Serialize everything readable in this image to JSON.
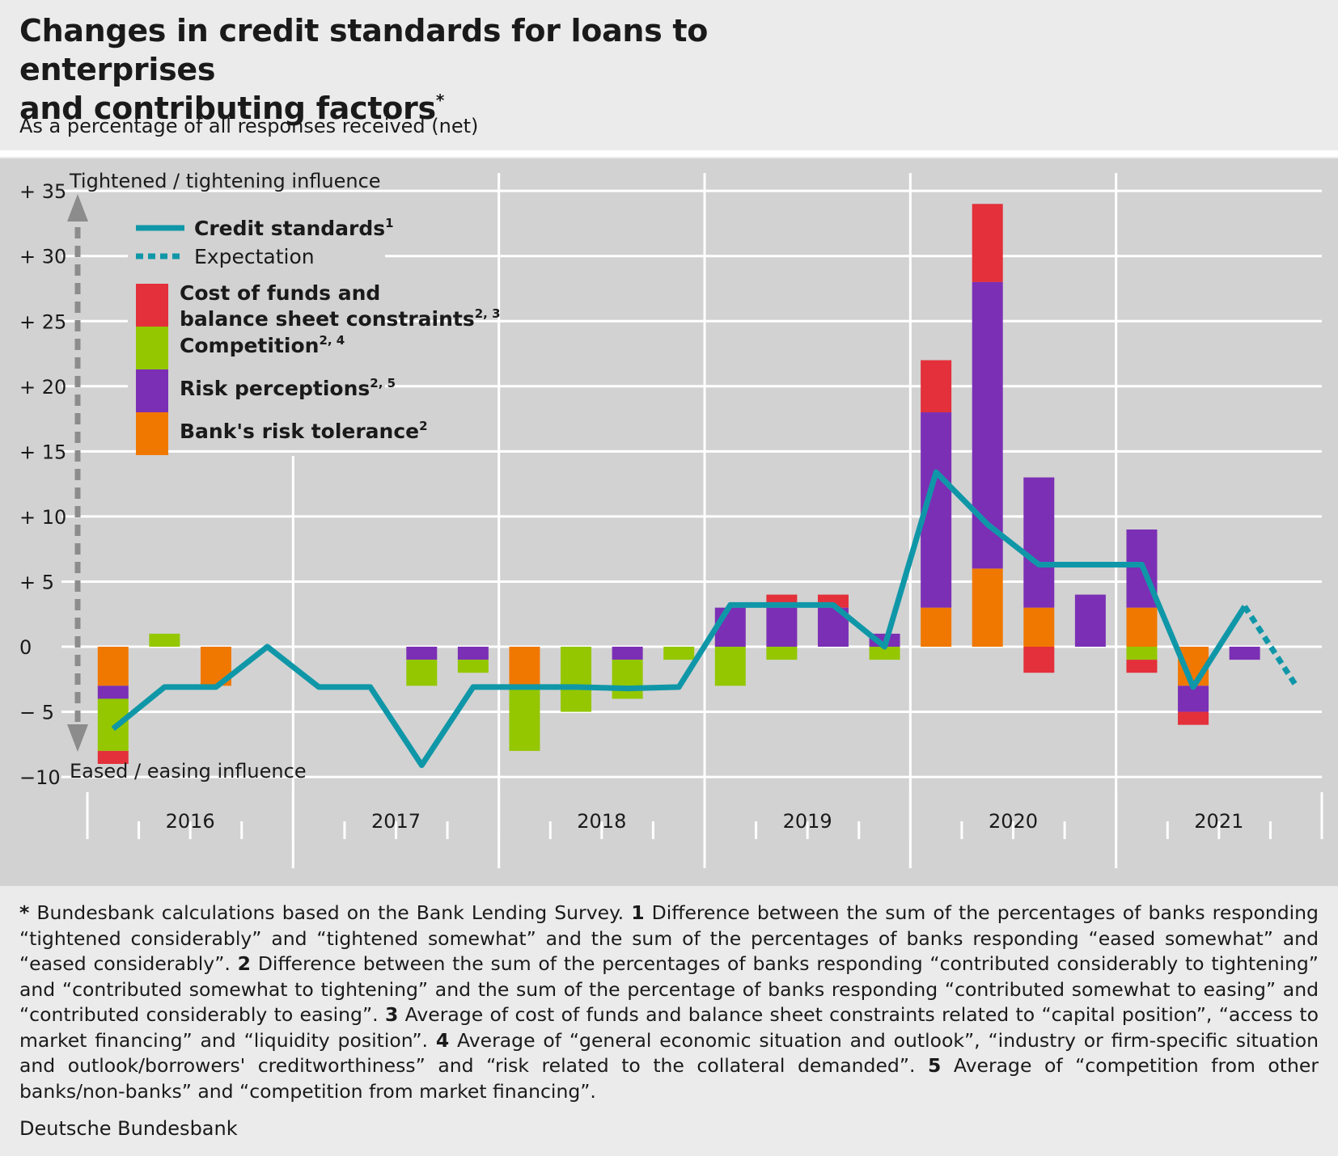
{
  "title": {
    "line1": "Changes in credit standards for loans to enterprises",
    "line2": "and contributing factors",
    "marker": "*"
  },
  "subtitle": "As a percentage of all responses received (net)",
  "colors": {
    "credit_standards": "#0f97a8",
    "cost_of_funds": "#e3303a",
    "competition": "#94c700",
    "risk_perceptions": "#7b2fb5",
    "risk_tolerance": "#f07800",
    "grid": "#ffffff",
    "plot_background": "#d2d2d2",
    "arrow": "#8c8c8c"
  },
  "chart_data": {
    "type": "bar",
    "stacked": true,
    "title": "Changes in credit standards for loans to enterprises and contributing factors",
    "ylabel": "As a percentage of all responses received (net)",
    "ylim": [
      -10,
      35
    ],
    "yticks": [
      "+ 35",
      "+ 30",
      "+ 25",
      "+ 20",
      "+ 15",
      "+ 10",
      "+   5",
      "0",
      "−   5",
      "−10"
    ],
    "ytick_values": [
      35,
      30,
      25,
      20,
      15,
      10,
      5,
      0,
      -5,
      -10
    ],
    "axis_annotation_top": "Tightened / tightening influence",
    "axis_annotation_bottom": "Eased / easing influence",
    "years": [
      "2016",
      "2017",
      "2018",
      "2019",
      "2020",
      "2021"
    ],
    "quarters_per_year": 4,
    "categories": [
      "2016 Q1",
      "2016 Q2",
      "2016 Q3",
      "2016 Q4",
      "2017 Q1",
      "2017 Q2",
      "2017 Q3",
      "2017 Q4",
      "2018 Q1",
      "2018 Q2",
      "2018 Q3",
      "2018 Q4",
      "2019 Q1",
      "2019 Q2",
      "2019 Q3",
      "2019 Q4",
      "2020 Q1",
      "2020 Q2",
      "2020 Q3",
      "2020 Q4",
      "2021 Q1",
      "2021 Q2",
      "2021 Q3",
      "2021 Q4"
    ],
    "series": [
      {
        "name": "Bank's risk tolerance",
        "sup": "2",
        "kind": "bar",
        "color_key": "risk_tolerance",
        "values": [
          -3,
          0,
          -3,
          0,
          0,
          0,
          0,
          0,
          -3,
          0,
          0,
          0,
          0,
          0,
          0,
          0,
          3,
          6,
          3,
          0,
          3,
          -3,
          0,
          null
        ]
      },
      {
        "name": "Risk perceptions",
        "sup": "2, 5",
        "kind": "bar",
        "color_key": "risk_perceptions",
        "values": [
          -1,
          0,
          0,
          0,
          0,
          0,
          -1,
          -1,
          0,
          0,
          -1,
          0,
          3,
          3,
          3,
          1,
          15,
          22,
          10,
          4,
          6,
          -2,
          -1,
          null
        ]
      },
      {
        "name": "Competition",
        "sup": "2, 4",
        "kind": "bar",
        "color_key": "competition",
        "values": [
          -4,
          1,
          0,
          0,
          0,
          0,
          -2,
          -1,
          -5,
          -5,
          -3,
          -1,
          -3,
          -1,
          0,
          -1,
          0,
          0,
          0,
          0,
          -1,
          0,
          0,
          null
        ]
      },
      {
        "name": "Cost of funds and balance sheet constraints",
        "sup": "2, 3",
        "kind": "bar",
        "color_key": "cost_of_funds",
        "values": [
          -1,
          0,
          0,
          0,
          0,
          0,
          0,
          0,
          0,
          0,
          0,
          0,
          0,
          1,
          1,
          0,
          4,
          6,
          -2,
          0,
          -1,
          -1,
          0,
          null
        ]
      },
      {
        "name": "Credit standards",
        "sup": "1",
        "kind": "line",
        "color_key": "credit_standards",
        "values": [
          -6.3,
          -3.1,
          -3.1,
          0,
          -3.1,
          -3.1,
          -9.1,
          -3.1,
          -3.1,
          -3.1,
          -3.2,
          -3.1,
          3.2,
          3.2,
          3.2,
          0,
          13.4,
          9.4,
          6.3,
          6.3,
          6.3,
          -3.1,
          3.1,
          null
        ]
      },
      {
        "name": "Expectation",
        "kind": "dashed-line",
        "color_key": "credit_standards",
        "values": [
          null,
          null,
          null,
          null,
          null,
          null,
          null,
          null,
          null,
          null,
          null,
          null,
          null,
          null,
          null,
          null,
          null,
          null,
          null,
          null,
          null,
          null,
          3.1,
          -3.0
        ]
      }
    ],
    "legend_placement": "top-left inside plot",
    "grid": "horizontal lines at each y tick"
  },
  "footnote": {
    "star": "*",
    "star_text": " Bundesbank calculations based on the Bank Lending Survey. ",
    "n1": "1",
    "t1": " Difference between the sum of the percentages of banks responding “tightened considerably” and “tightened somewhat” and the sum of the percentages of banks responding “eased somewhat” and “eased considerably”. ",
    "n2": "2",
    "t2": " Difference between the sum of the percentages of banks responding “contributed considerably to tightening” and “contributed somewhat to tightening” and the sum of the percentage of banks responding “contributed somewhat to easing” and “contributed considerably to easing”. ",
    "n3": "3",
    "t3": " Average of cost of funds and balance sheet constraints related to “capital position”, “access to market financing” and “liquidity position”. ",
    "n4": "4",
    "t4": " Average of “general economic situation and outlook”, “industry or firm-specific situation and outlook/borrowers' creditworthiness” and “risk related to the collateral demanded”. ",
    "n5": "5",
    "t5": " Average of “competition from other banks/non-banks” and “competition from market financing”."
  },
  "source": "Deutsche Bundesbank"
}
